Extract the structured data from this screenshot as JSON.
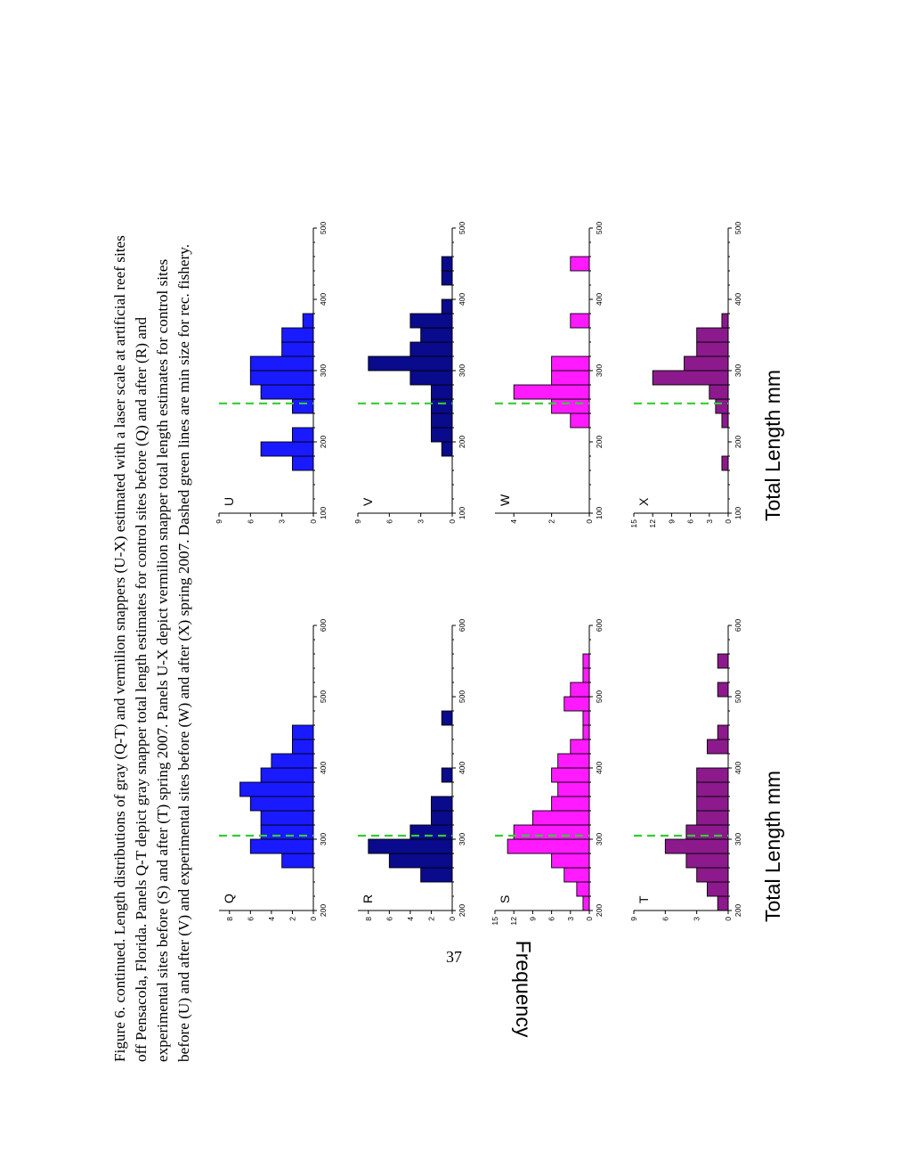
{
  "caption": {
    "lines": [
      "Figure 6. continued. Length distributions of gray (Q-T) and vermilion snappers (U-X) estimated with a laser scale at artificial reef sites",
      "off Pensacola, Florida. Panels Q-T depict gray snapper total length estimates for control sites before (Q) and after (R) and",
      "experimental sites before (S) and after (T) spring 2007. Panels U-X depict vermilion snapper total length estimates for control sites",
      "before (U) and after (V) and experimental sites before (W) and after (X) spring 2007.  Dashed green lines are min size for rec. fishery."
    ]
  },
  "page_number": "37",
  "shared_labels": {
    "ylabel": "Frequency",
    "xlabel_left": "Total Length mm",
    "xlabel_right": "Total Length mm"
  },
  "chart_data": [
    {
      "panel": "Q",
      "type": "bar",
      "color": "#1a1aff",
      "xlim": [
        200,
        600
      ],
      "ylim": [
        0,
        9
      ],
      "xticks": [
        200,
        300,
        400,
        500,
        600
      ],
      "yticks": [
        0,
        2,
        4,
        6,
        8
      ],
      "bin_width": 20,
      "min_size_line": 305,
      "bins": [
        [
          260,
          3
        ],
        [
          280,
          6
        ],
        [
          300,
          5
        ],
        [
          320,
          5
        ],
        [
          340,
          6
        ],
        [
          360,
          7
        ],
        [
          380,
          5
        ],
        [
          400,
          4
        ],
        [
          420,
          2
        ],
        [
          440,
          2
        ]
      ]
    },
    {
      "panel": "R",
      "type": "bar",
      "color": "#0a0a8c",
      "xlim": [
        200,
        600
      ],
      "ylim": [
        0,
        9
      ],
      "xticks": [
        200,
        300,
        400,
        500,
        600
      ],
      "yticks": [
        0,
        2,
        4,
        6,
        8
      ],
      "bin_width": 20,
      "min_size_line": 305,
      "bins": [
        [
          240,
          3
        ],
        [
          260,
          6
        ],
        [
          280,
          8
        ],
        [
          300,
          4
        ],
        [
          320,
          2
        ],
        [
          340,
          2
        ],
        [
          380,
          1
        ],
        [
          460,
          1
        ]
      ]
    },
    {
      "panel": "S",
      "type": "bar",
      "color": "#ff1aff",
      "xlim": [
        200,
        600
      ],
      "ylim": [
        0,
        15
      ],
      "xticks": [
        200,
        300,
        400,
        500,
        600
      ],
      "yticks": [
        0,
        3,
        6,
        9,
        12,
        15
      ],
      "bin_width": 20,
      "min_size_line": 305,
      "bins": [
        [
          200,
          1
        ],
        [
          220,
          2
        ],
        [
          240,
          4
        ],
        [
          260,
          6
        ],
        [
          280,
          13
        ],
        [
          300,
          12
        ],
        [
          320,
          9
        ],
        [
          340,
          6
        ],
        [
          360,
          5
        ],
        [
          380,
          6
        ],
        [
          400,
          5
        ],
        [
          420,
          3
        ],
        [
          440,
          1
        ],
        [
          460,
          1
        ],
        [
          480,
          4
        ],
        [
          500,
          3
        ],
        [
          520,
          1
        ],
        [
          540,
          1
        ]
      ]
    },
    {
      "panel": "T",
      "type": "bar",
      "color": "#8c1a8c",
      "xlim": [
        200,
        600
      ],
      "ylim": [
        0,
        9
      ],
      "xticks": [
        200,
        300,
        400,
        500,
        600
      ],
      "yticks": [
        0,
        3,
        6,
        9
      ],
      "bin_width": 20,
      "min_size_line": 305,
      "bins": [
        [
          200,
          1
        ],
        [
          220,
          2
        ],
        [
          240,
          3
        ],
        [
          260,
          4
        ],
        [
          280,
          6
        ],
        [
          300,
          4
        ],
        [
          320,
          3
        ],
        [
          340,
          3
        ],
        [
          360,
          3
        ],
        [
          380,
          3
        ],
        [
          420,
          2
        ],
        [
          440,
          1
        ],
        [
          500,
          1
        ],
        [
          540,
          1
        ]
      ]
    },
    {
      "panel": "U",
      "type": "bar",
      "color": "#1a1aff",
      "xlim": [
        100,
        500
      ],
      "ylim": [
        0,
        9
      ],
      "xticks": [
        100,
        200,
        300,
        400,
        500
      ],
      "yticks": [
        0,
        3,
        6,
        9
      ],
      "bin_width": 20,
      "min_size_line": 254,
      "bins": [
        [
          160,
          2
        ],
        [
          180,
          5
        ],
        [
          200,
          2
        ],
        [
          240,
          2
        ],
        [
          260,
          5
        ],
        [
          280,
          6
        ],
        [
          300,
          6
        ],
        [
          320,
          3
        ],
        [
          340,
          3
        ],
        [
          360,
          1
        ]
      ]
    },
    {
      "panel": "V",
      "type": "bar",
      "color": "#0a0a8c",
      "xlim": [
        100,
        500
      ],
      "ylim": [
        0,
        9
      ],
      "xticks": [
        100,
        200,
        300,
        400,
        500
      ],
      "yticks": [
        0,
        3,
        6,
        9
      ],
      "bin_width": 20,
      "min_size_line": 254,
      "bins": [
        [
          180,
          1
        ],
        [
          200,
          2
        ],
        [
          220,
          2
        ],
        [
          240,
          2
        ],
        [
          260,
          2
        ],
        [
          280,
          4
        ],
        [
          300,
          8
        ],
        [
          320,
          4
        ],
        [
          340,
          3
        ],
        [
          360,
          4
        ],
        [
          380,
          1
        ],
        [
          420,
          1
        ],
        [
          440,
          1
        ]
      ]
    },
    {
      "panel": "W",
      "type": "bar",
      "color": "#ff1aff",
      "xlim": [
        100,
        500
      ],
      "ylim": [
        0,
        5
      ],
      "xticks": [
        100,
        200,
        300,
        400,
        500
      ],
      "yticks": [
        0,
        2,
        4
      ],
      "bin_width": 20,
      "min_size_line": 254,
      "bins": [
        [
          220,
          1
        ],
        [
          240,
          2
        ],
        [
          260,
          4
        ],
        [
          280,
          2
        ],
        [
          300,
          2
        ],
        [
          360,
          1
        ],
        [
          440,
          1
        ]
      ]
    },
    {
      "panel": "X",
      "type": "bar",
      "color": "#8c1a8c",
      "xlim": [
        100,
        500
      ],
      "ylim": [
        0,
        15
      ],
      "xticks": [
        100,
        200,
        300,
        400,
        500
      ],
      "yticks": [
        0,
        3,
        6,
        9,
        12,
        15
      ],
      "bin_width": 20,
      "min_size_line": 254,
      "bins": [
        [
          160,
          1
        ],
        [
          220,
          1
        ],
        [
          240,
          2
        ],
        [
          260,
          3
        ],
        [
          280,
          12
        ],
        [
          300,
          7
        ],
        [
          320,
          5
        ],
        [
          340,
          5
        ],
        [
          360,
          1
        ]
      ]
    }
  ]
}
